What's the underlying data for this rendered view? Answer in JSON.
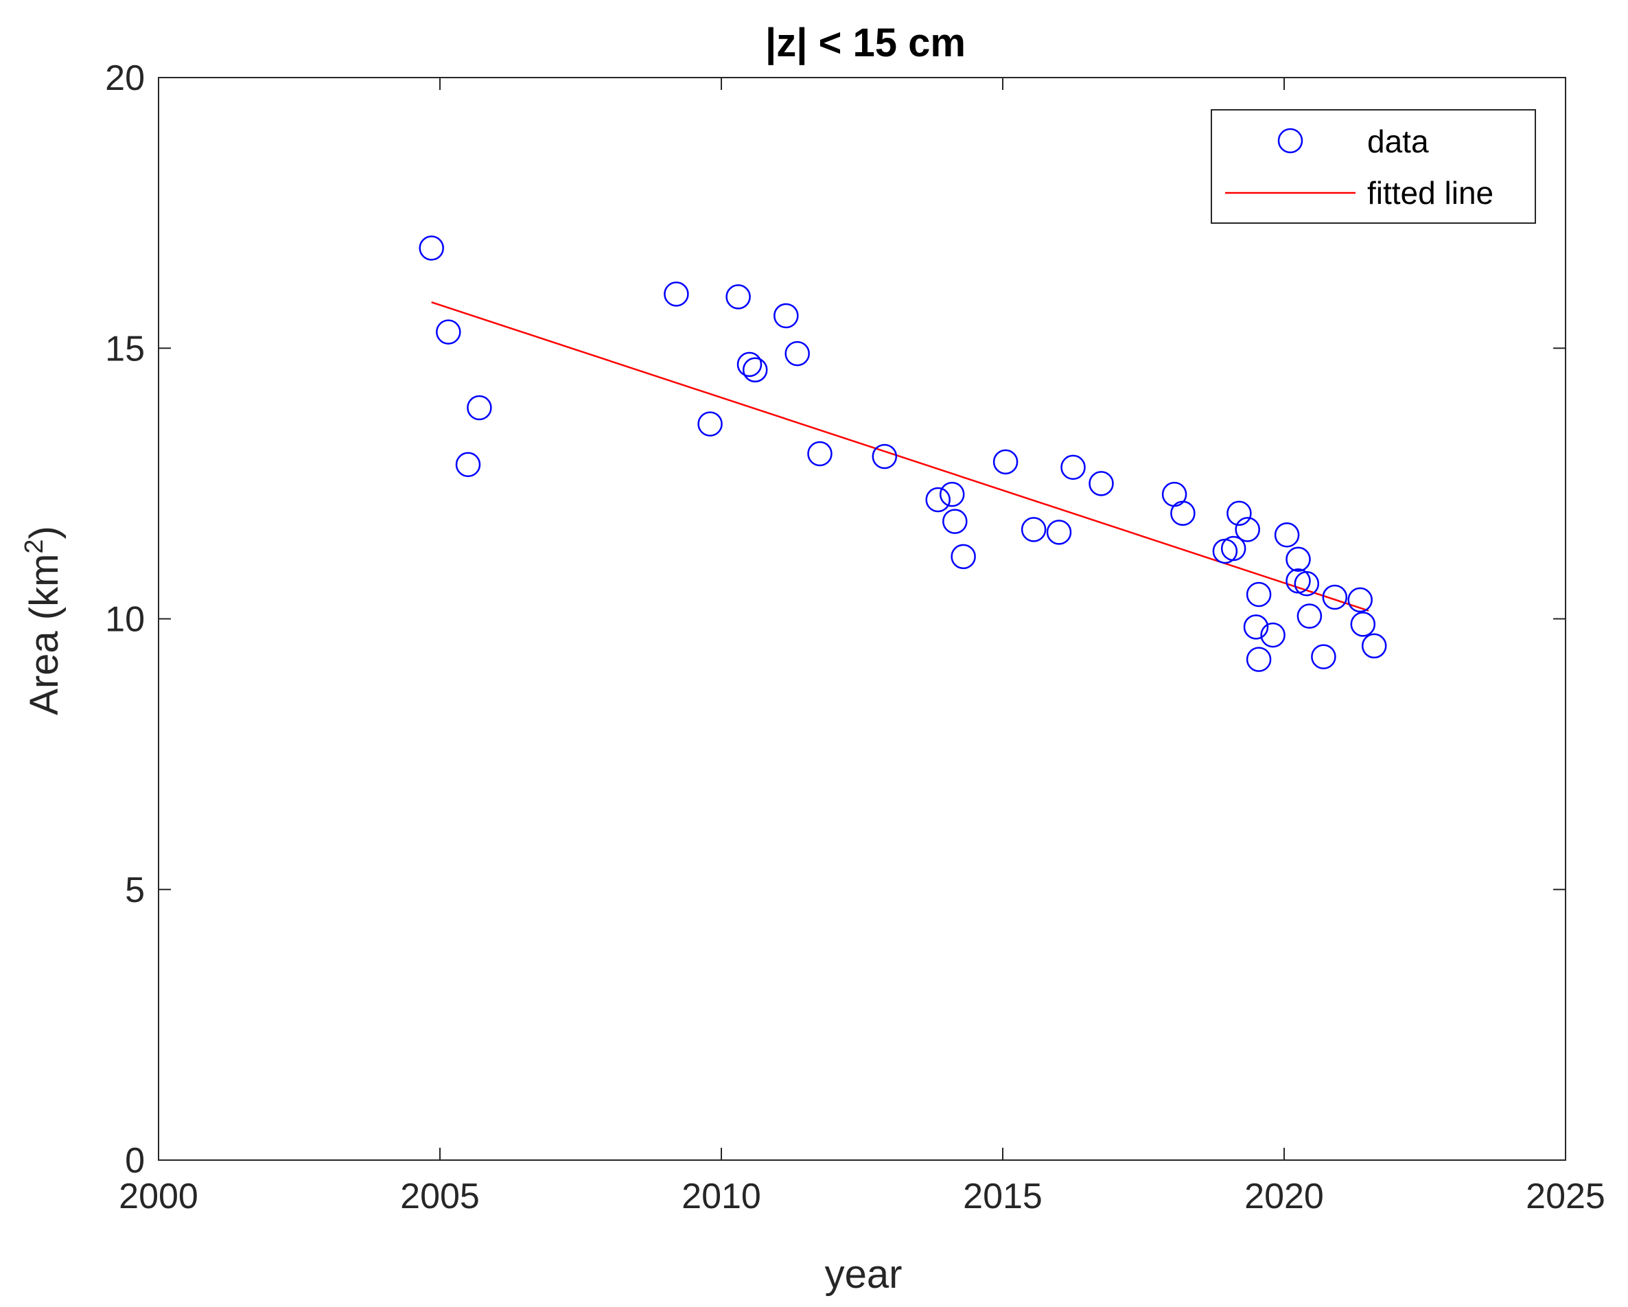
{
  "chart_data": {
    "type": "scatter",
    "title": "|z| < 15 cm",
    "xlabel": "year",
    "ylabel": "Area (km",
    "ylabel_superscript": "2",
    "ylabel_suffix": ")",
    "xlim": [
      2000,
      2025
    ],
    "ylim": [
      0,
      20
    ],
    "xticks": [
      2000,
      2005,
      2010,
      2015,
      2020,
      2025
    ],
    "yticks": [
      0,
      5,
      10,
      15,
      20
    ],
    "grid": false,
    "legend_position": "top-right",
    "series": [
      {
        "name": "data",
        "kind": "markers",
        "marker": "circle-open",
        "color": "#0000ff",
        "x": [
          2004.85,
          2005.15,
          2005.5,
          2005.7,
          2009.2,
          2009.8,
          2010.3,
          2010.5,
          2010.6,
          2011.15,
          2011.35,
          2011.75,
          2012.9,
          2013.85,
          2014.1,
          2014.15,
          2014.3,
          2015.05,
          2015.55,
          2016.0,
          2016.25,
          2016.75,
          2018.05,
          2018.2,
          2018.95,
          2019.1,
          2019.2,
          2019.35,
          2019.5,
          2019.55,
          2019.55,
          2019.8,
          2020.05,
          2020.25,
          2020.25,
          2020.4,
          2020.45,
          2020.7,
          2020.9,
          2021.35,
          2021.4,
          2021.6
        ],
        "y": [
          16.85,
          15.3,
          12.85,
          13.9,
          16.0,
          13.6,
          15.95,
          14.7,
          14.6,
          15.6,
          14.9,
          13.05,
          13.0,
          12.2,
          12.3,
          11.8,
          11.15,
          12.9,
          11.65,
          11.6,
          12.8,
          12.5,
          12.3,
          11.95,
          11.25,
          11.3,
          11.95,
          11.65,
          9.85,
          9.25,
          10.45,
          9.7,
          11.55,
          11.1,
          10.7,
          10.65,
          10.05,
          9.3,
          10.4,
          10.35,
          9.9,
          9.5
        ]
      },
      {
        "name": "fitted line",
        "kind": "line",
        "color": "#ff0000",
        "x": [
          2004.85,
          2021.5
        ],
        "y": [
          15.85,
          10.15
        ]
      }
    ]
  }
}
